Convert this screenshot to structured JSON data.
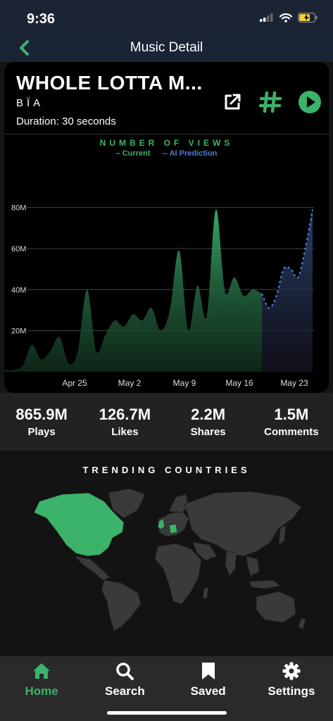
{
  "status": {
    "time": "9:36"
  },
  "nav": {
    "title": "Music Detail"
  },
  "song": {
    "title": "WHOLE LOTTA M...",
    "artist": "BÏA",
    "duration": "Duration: 30 seconds"
  },
  "chart_data": {
    "type": "area",
    "title": "NUMBER OF VIEWS",
    "legend": [
      "Current",
      "AI Prediction"
    ],
    "y_ticks": [
      "20M",
      "40M",
      "60M",
      "80M"
    ],
    "x_ticks": [
      "Apr 25",
      "May 2",
      "May 9",
      "May 16",
      "May 23"
    ],
    "ylim": [
      0,
      85
    ],
    "unit": "M",
    "series": [
      {
        "name": "Current",
        "color": "#3bb36a",
        "values": [
          1,
          1,
          3,
          13,
          6,
          10,
          17,
          4,
          10,
          40,
          10,
          18,
          25,
          22,
          28,
          25,
          31,
          20,
          30,
          59,
          20,
          42,
          27,
          79,
          39,
          46,
          37,
          40,
          38
        ]
      },
      {
        "name": "AI Prediction",
        "color": "#4f7fd6",
        "values": [
          38,
          31,
          37,
          50,
          50,
          46,
          60,
          79
        ]
      }
    ]
  },
  "stats": [
    {
      "value": "865.9M",
      "label": "Plays"
    },
    {
      "value": "126.7M",
      "label": "Likes"
    },
    {
      "value": "2.2M",
      "label": "Shares"
    },
    {
      "value": "1.5M",
      "label": "Comments"
    }
  ],
  "trending": {
    "title": "TRENDING COUNTRIES",
    "highlighted": [
      "North America",
      "United Kingdom",
      "Germany"
    ]
  },
  "tabs": [
    {
      "label": "Home",
      "icon": "home-icon",
      "active": true
    },
    {
      "label": "Search",
      "icon": "search-icon"
    },
    {
      "label": "Saved",
      "icon": "bookmark-icon"
    },
    {
      "label": "Settings",
      "icon": "gear-icon"
    }
  ],
  "colors": {
    "accent": "#3bb36a",
    "prediction": "#4f7fd6",
    "background": "#151515"
  }
}
